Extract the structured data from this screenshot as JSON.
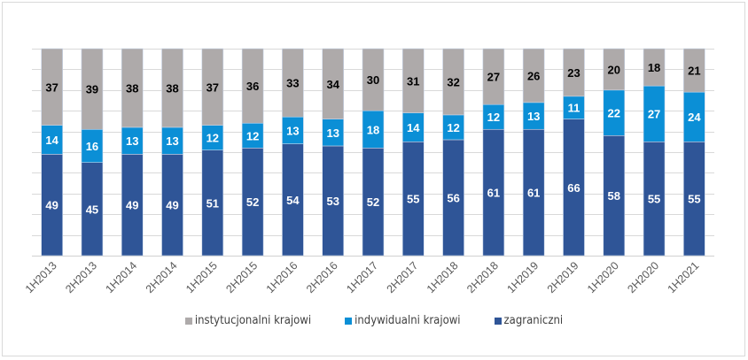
{
  "chart_data": {
    "type": "bar",
    "stacked": true,
    "percent": true,
    "title": "",
    "xlabel": "",
    "ylabel": "",
    "ylim": [
      0,
      100
    ],
    "grid": true,
    "legend_position": "bottom",
    "categories": [
      "1H2013",
      "2H2013",
      "1H2014",
      "2H2014",
      "1H2015",
      "2H2015",
      "1H2016",
      "2H2016",
      "1H2017",
      "2H2017",
      "1H2018",
      "2H2018",
      "1H2019",
      "2H2019",
      "1H2020",
      "2H2020",
      "1H2021"
    ],
    "series": [
      {
        "name": "zagraniczni",
        "color": "#2f5597",
        "label_color": "#ffffff",
        "values": [
          49,
          45,
          49,
          49,
          51,
          52,
          54,
          53,
          52,
          55,
          56,
          61,
          61,
          66,
          58,
          55,
          55
        ]
      },
      {
        "name": "indywidualni krajowi",
        "color": "#0b8fd6",
        "label_color": "#ffffff",
        "values": [
          14,
          16,
          13,
          13,
          12,
          12,
          13,
          13,
          18,
          14,
          12,
          12,
          13,
          11,
          22,
          27,
          24
        ]
      },
      {
        "name": "instytucjonalni krajowi",
        "color": "#aeaaaa",
        "label_color": "#000000",
        "values": [
          37,
          39,
          38,
          38,
          37,
          36,
          33,
          34,
          30,
          31,
          32,
          27,
          26,
          23,
          20,
          18,
          21
        ]
      }
    ],
    "legend_order": [
      "instytucjonalni krajowi",
      "indywidualni krajowi",
      "zagraniczni"
    ]
  }
}
